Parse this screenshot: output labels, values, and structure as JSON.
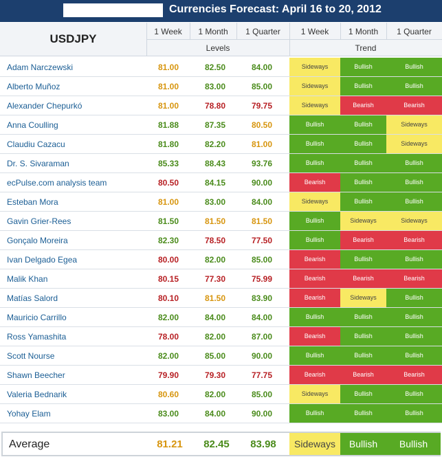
{
  "title": "Currencies Forecast: April 16 to 20, 2012",
  "header": {
    "pair": "USDJPY",
    "cols": [
      "1 Week",
      "1 Month",
      "1 Quarter",
      "1 Week",
      "1 Month",
      "1 Quarter"
    ],
    "levels_label": "Levels",
    "trend_label": "Trend"
  },
  "colors": {
    "bullish": "#58aa24",
    "bearish": "#e03a48",
    "sideways": "#f8e963",
    "level_green": "#4a8b1b",
    "level_orange": "#d7950e",
    "level_red": "#b72024",
    "title_bar": "#1c3f6e"
  },
  "chart_data": {
    "type": "table",
    "rows": [
      {
        "name": "Adam Narczewski",
        "levels": [
          "81.00",
          "82.50",
          "84.00"
        ],
        "level_colors": [
          "orange",
          "green",
          "green"
        ],
        "trend": [
          "Sideways",
          "Bullish",
          "Bullish"
        ]
      },
      {
        "name": "Alberto Muñoz",
        "levels": [
          "81.00",
          "83.00",
          "85.00"
        ],
        "level_colors": [
          "orange",
          "green",
          "green"
        ],
        "trend": [
          "Sideways",
          "Bullish",
          "Bullish"
        ]
      },
      {
        "name": "Alexander Chepurkó",
        "levels": [
          "81.00",
          "78.80",
          "79.75"
        ],
        "level_colors": [
          "orange",
          "red",
          "red"
        ],
        "trend": [
          "Sideways",
          "Bearish",
          "Bearish"
        ]
      },
      {
        "name": "Anna Coulling",
        "levels": [
          "81.88",
          "87.35",
          "80.50"
        ],
        "level_colors": [
          "green",
          "green",
          "orange"
        ],
        "trend": [
          "Bullish",
          "Bullish",
          "Sideways"
        ]
      },
      {
        "name": "Claudiu Cazacu",
        "levels": [
          "81.80",
          "82.20",
          "81.00"
        ],
        "level_colors": [
          "green",
          "green",
          "orange"
        ],
        "trend": [
          "Bullish",
          "Bullish",
          "Sideways"
        ]
      },
      {
        "name": "Dr. S. Sivaraman",
        "levels": [
          "85.33",
          "88.43",
          "93.76"
        ],
        "level_colors": [
          "green",
          "green",
          "green"
        ],
        "trend": [
          "Bullish",
          "Bullish",
          "Bullish"
        ]
      },
      {
        "name": "ecPulse.com analysis team",
        "levels": [
          "80.50",
          "84.15",
          "90.00"
        ],
        "level_colors": [
          "red",
          "green",
          "green"
        ],
        "trend": [
          "Bearish",
          "Bullish",
          "Bullish"
        ]
      },
      {
        "name": "Esteban Mora",
        "levels": [
          "81.00",
          "83.00",
          "84.00"
        ],
        "level_colors": [
          "orange",
          "green",
          "green"
        ],
        "trend": [
          "Sideways",
          "Bullish",
          "Bullish"
        ]
      },
      {
        "name": "Gavin Grier-Rees",
        "levels": [
          "81.50",
          "81.50",
          "81.50"
        ],
        "level_colors": [
          "green",
          "orange",
          "orange"
        ],
        "trend": [
          "Bullish",
          "Sideways",
          "Sideways"
        ]
      },
      {
        "name": "Gonçalo Moreira",
        "levels": [
          "82.30",
          "78.50",
          "77.50"
        ],
        "level_colors": [
          "green",
          "red",
          "red"
        ],
        "trend": [
          "Bullish",
          "Bearish",
          "Bearish"
        ]
      },
      {
        "name": "Ivan Delgado Egea",
        "levels": [
          "80.00",
          "82.00",
          "85.00"
        ],
        "level_colors": [
          "red",
          "green",
          "green"
        ],
        "trend": [
          "Bearish",
          "Bullish",
          "Bullish"
        ]
      },
      {
        "name": "Malik Khan",
        "levels": [
          "80.15",
          "77.30",
          "75.99"
        ],
        "level_colors": [
          "red",
          "red",
          "red"
        ],
        "trend": [
          "Bearish",
          "Bearish",
          "Bearish"
        ]
      },
      {
        "name": "Matías Salord",
        "levels": [
          "80.10",
          "81.50",
          "83.90"
        ],
        "level_colors": [
          "red",
          "orange",
          "green"
        ],
        "trend": [
          "Bearish",
          "Sideways",
          "Bullish"
        ]
      },
      {
        "name": "Mauricio Carrillo",
        "levels": [
          "82.00",
          "84.00",
          "84.00"
        ],
        "level_colors": [
          "green",
          "green",
          "green"
        ],
        "trend": [
          "Bullish",
          "Bullish",
          "Bullish"
        ]
      },
      {
        "name": "Ross Yamashita",
        "levels": [
          "78.00",
          "82.00",
          "87.00"
        ],
        "level_colors": [
          "red",
          "green",
          "green"
        ],
        "trend": [
          "Bearish",
          "Bullish",
          "Bullish"
        ]
      },
      {
        "name": "Scott Nourse",
        "levels": [
          "82.00",
          "85.00",
          "90.00"
        ],
        "level_colors": [
          "green",
          "green",
          "green"
        ],
        "trend": [
          "Bullish",
          "Bullish",
          "Bullish"
        ]
      },
      {
        "name": "Shawn Beecher",
        "levels": [
          "79.90",
          "79.30",
          "77.75"
        ],
        "level_colors": [
          "red",
          "red",
          "red"
        ],
        "trend": [
          "Bearish",
          "Bearish",
          "Bearish"
        ]
      },
      {
        "name": "Valeria Bednarik",
        "levels": [
          "80.60",
          "82.00",
          "85.00"
        ],
        "level_colors": [
          "orange",
          "green",
          "green"
        ],
        "trend": [
          "Sideways",
          "Bullish",
          "Bullish"
        ]
      },
      {
        "name": "Yohay Elam",
        "levels": [
          "83.00",
          "84.00",
          "90.00"
        ],
        "level_colors": [
          "green",
          "green",
          "green"
        ],
        "trend": [
          "Bullish",
          "Bullish",
          "Bullish"
        ]
      }
    ],
    "average": {
      "label": "Average",
      "levels": [
        "81.21",
        "82.45",
        "83.98"
      ],
      "level_colors": [
        "orange",
        "green",
        "green"
      ],
      "trend": [
        "Sideways",
        "Bullish",
        "Bullish"
      ]
    }
  }
}
